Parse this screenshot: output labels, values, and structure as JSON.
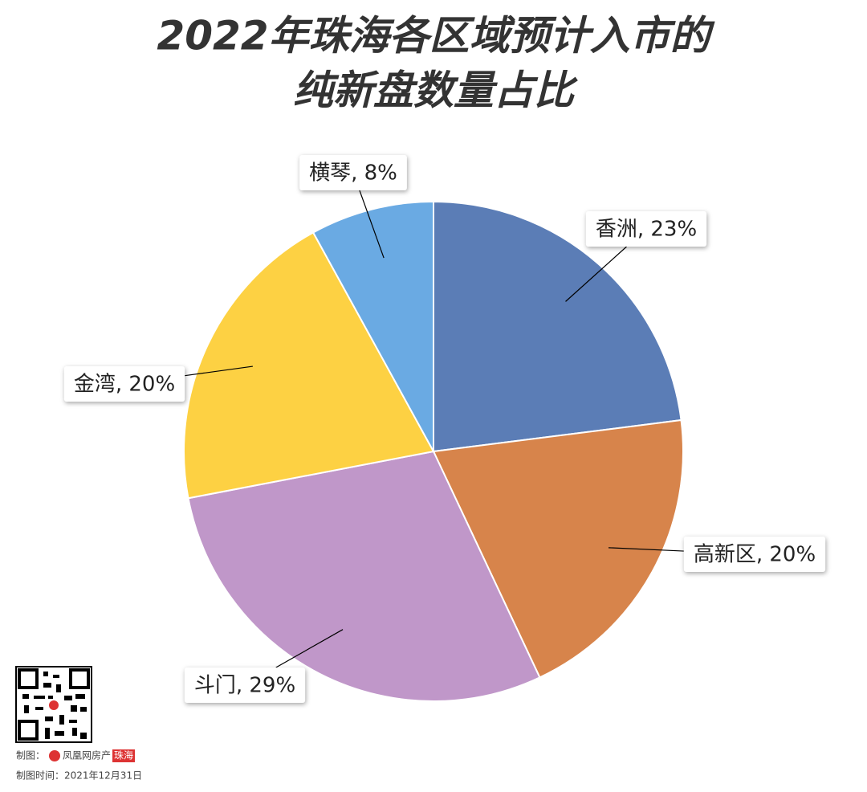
{
  "chart_data": {
    "type": "pie",
    "title": [
      "2022年珠海各区域预计入市的",
      "纯新盘数量占比"
    ],
    "categories": [
      "香洲",
      "高新区",
      "斗门",
      "金湾",
      "横琴"
    ],
    "values": [
      23,
      20,
      29,
      20,
      8
    ],
    "value_labels": [
      "香洲, 23%",
      "高新区, 20%",
      "斗门, 29%",
      "金湾, 20%",
      "横琴, 8%"
    ],
    "colors": [
      "#5b7db6",
      "#d7844b",
      "#c097c9",
      "#fdd143",
      "#6aaae3"
    ]
  },
  "footer": {
    "maker_label": "制图：",
    "logo_text": "凤凰网房产",
    "logo_city": "珠海",
    "date_label": "制图时间：2021年12月31日"
  }
}
